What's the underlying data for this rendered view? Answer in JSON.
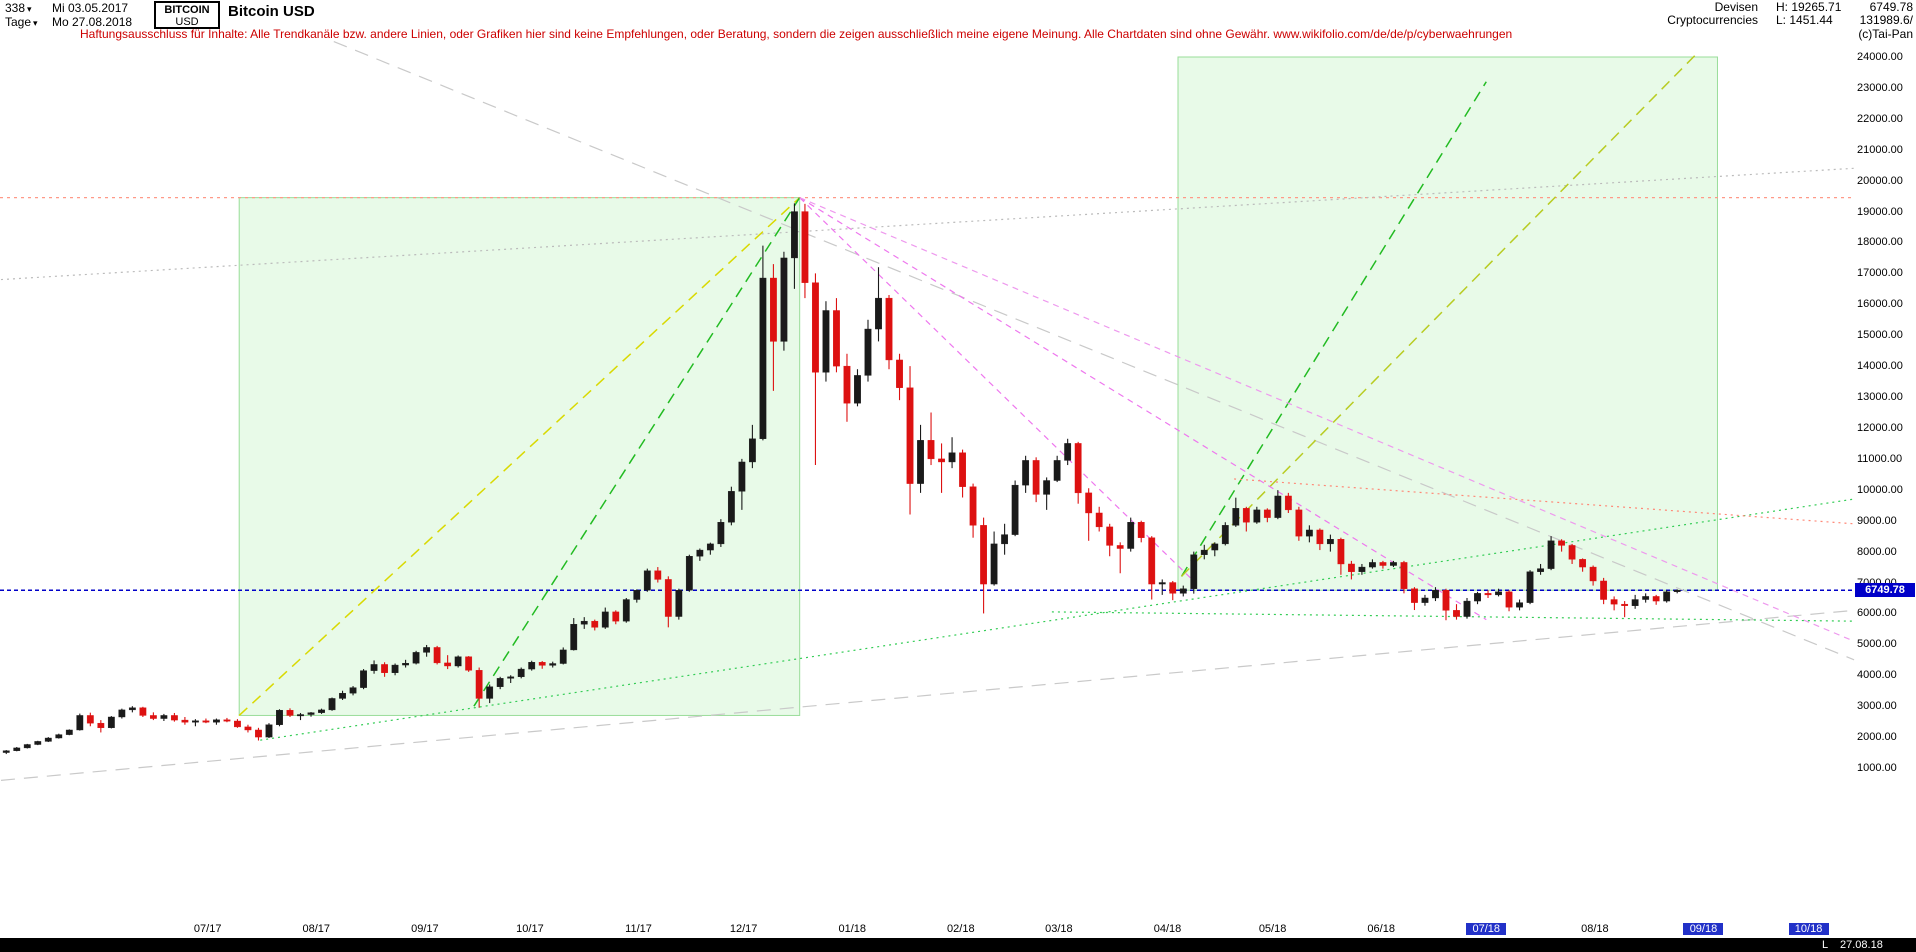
{
  "header": {
    "bars_count": "338",
    "start_date": "Mi 03.05.2017",
    "period": "Tage",
    "end_date": "Mo 27.08.2018",
    "symbol_line1": "BITCOIN",
    "symbol_line2": "USD",
    "title": "Bitcoin USD",
    "category_line1": "Devisen",
    "category_line2": "Cryptocurrencies",
    "high_label": "H: 19265.71",
    "low_label": "L: 1451.44",
    "last_price": "6749.78",
    "volume": "131989.6/",
    "copyright": "(c)Tai-Pan"
  },
  "disclaimer": "Haftungsausschluss für Inhalte: Alle Trendkanäle bzw. andere Linien, oder Grafiken hier sind keine Empfehlungen, oder Beratung, sondern die zeigen ausschließlich meine eigene Meinung. Alle Chartdaten sind ohne Gewähr.  www.wikifolio.com/de/de/p/cyberwaehrungen",
  "footer": {
    "last_label": "L",
    "last_date": "27.08.18"
  },
  "chart_data": {
    "type": "candlestick",
    "title": "Bitcoin USD",
    "xlabel": "",
    "ylabel": "",
    "x_start_date": "03.05.2017",
    "x_end_date": "27.08.2018",
    "current_price": 6749.78,
    "period_high": 19265.71,
    "period_low": 1451.44,
    "grid": false,
    "up_color": "#1a1a1a",
    "down_color": "#dd1111",
    "y_axis": {
      "min": 1000,
      "max": 24000,
      "step": 1000
    },
    "x_ticks": [
      {
        "label": "07/17",
        "day": 59,
        "hl": false
      },
      {
        "label": "08/17",
        "day": 90,
        "hl": false
      },
      {
        "label": "09/17",
        "day": 121,
        "hl": false
      },
      {
        "label": "10/17",
        "day": 151,
        "hl": false
      },
      {
        "label": "11/17",
        "day": 182,
        "hl": false
      },
      {
        "label": "12/17",
        "day": 212,
        "hl": false
      },
      {
        "label": "01/18",
        "day": 243,
        "hl": false
      },
      {
        "label": "02/18",
        "day": 274,
        "hl": false
      },
      {
        "label": "03/18",
        "day": 302,
        "hl": false
      },
      {
        "label": "04/18",
        "day": 333,
        "hl": false
      },
      {
        "label": "05/18",
        "day": 363,
        "hl": false
      },
      {
        "label": "06/18",
        "day": 394,
        "hl": false
      },
      {
        "label": "07/18",
        "day": 424,
        "hl": true
      },
      {
        "label": "08/18",
        "day": 455,
        "hl": false
      },
      {
        "label": "09/18",
        "day": 486,
        "hl": true
      },
      {
        "label": "10/18",
        "day": 516,
        "hl": true
      }
    ],
    "candles_days_per_bar": 3,
    "candles_start_day": 1.5,
    "candles": [
      [
        1500,
        1580,
        1451,
        1560
      ],
      [
        1560,
        1680,
        1540,
        1650
      ],
      [
        1650,
        1780,
        1630,
        1760
      ],
      [
        1760,
        1880,
        1740,
        1860
      ],
      [
        1860,
        2000,
        1840,
        1970
      ],
      [
        1970,
        2110,
        1950,
        2080
      ],
      [
        2080,
        2250,
        2060,
        2230
      ],
      [
        2230,
        2760,
        2210,
        2700
      ],
      [
        2700,
        2790,
        2350,
        2450
      ],
      [
        2450,
        2550,
        2150,
        2300
      ],
      [
        2300,
        2680,
        2280,
        2650
      ],
      [
        2650,
        2920,
        2600,
        2880
      ],
      [
        2880,
        3000,
        2800,
        2950
      ],
      [
        2950,
        2980,
        2650,
        2700
      ],
      [
        2700,
        2800,
        2550,
        2600
      ],
      [
        2600,
        2750,
        2520,
        2700
      ],
      [
        2700,
        2780,
        2500,
        2550
      ],
      [
        2550,
        2650,
        2400,
        2480
      ],
      [
        2480,
        2580,
        2350,
        2530
      ],
      [
        2530,
        2600,
        2450,
        2480
      ],
      [
        2480,
        2600,
        2400,
        2560
      ],
      [
        2560,
        2620,
        2480,
        2520
      ],
      [
        2520,
        2580,
        2300,
        2330
      ],
      [
        2330,
        2400,
        2150,
        2230
      ],
      [
        2230,
        2300,
        1890,
        2000
      ],
      [
        2000,
        2450,
        1970,
        2400
      ],
      [
        2400,
        2900,
        2350,
        2870
      ],
      [
        2870,
        2930,
        2650,
        2700
      ],
      [
        2700,
        2780,
        2550,
        2730
      ],
      [
        2730,
        2810,
        2660,
        2790
      ],
      [
        2790,
        2920,
        2750,
        2880
      ],
      [
        2880,
        3280,
        2850,
        3250
      ],
      [
        3250,
        3500,
        3200,
        3420
      ],
      [
        3420,
        3650,
        3350,
        3600
      ],
      [
        3600,
        4200,
        3550,
        4150
      ],
      [
        4150,
        4480,
        4050,
        4350
      ],
      [
        4350,
        4420,
        3950,
        4080
      ],
      [
        4080,
        4380,
        4000,
        4330
      ],
      [
        4330,
        4500,
        4250,
        4390
      ],
      [
        4390,
        4790,
        4350,
        4740
      ],
      [
        4740,
        4980,
        4600,
        4900
      ],
      [
        4900,
        4950,
        4350,
        4400
      ],
      [
        4400,
        4650,
        4200,
        4300
      ],
      [
        4300,
        4640,
        4250,
        4600
      ],
      [
        4600,
        4620,
        4110,
        4160
      ],
      [
        4160,
        4250,
        2950,
        3250
      ],
      [
        3250,
        3700,
        3100,
        3630
      ],
      [
        3630,
        3950,
        3550,
        3900
      ],
      [
        3900,
        4000,
        3750,
        3950
      ],
      [
        3950,
        4250,
        3900,
        4200
      ],
      [
        4200,
        4470,
        4150,
        4420
      ],
      [
        4420,
        4460,
        4210,
        4320
      ],
      [
        4320,
        4440,
        4250,
        4380
      ],
      [
        4380,
        4900,
        4350,
        4820
      ],
      [
        4820,
        5850,
        4800,
        5650
      ],
      [
        5650,
        5880,
        5500,
        5750
      ],
      [
        5750,
        5800,
        5450,
        5550
      ],
      [
        5550,
        6190,
        5500,
        6050
      ],
      [
        6050,
        6100,
        5650,
        5750
      ],
      [
        5750,
        6500,
        5700,
        6450
      ],
      [
        6450,
        6780,
        6350,
        6750
      ],
      [
        6750,
        7450,
        6700,
        7380
      ],
      [
        7380,
        7500,
        7000,
        7100
      ],
      [
        7100,
        7200,
        5550,
        5900
      ],
      [
        5900,
        6800,
        5800,
        6750
      ],
      [
        6750,
        7900,
        6700,
        7850
      ],
      [
        7850,
        8100,
        7700,
        8050
      ],
      [
        8050,
        8290,
        7900,
        8250
      ],
      [
        8250,
        9050,
        8150,
        8950
      ],
      [
        8950,
        10100,
        8850,
        9950
      ],
      [
        9950,
        11000,
        9350,
        10900
      ],
      [
        10900,
        12100,
        10700,
        11650
      ],
      [
        11650,
        17900,
        11600,
        16850
      ],
      [
        16850,
        17300,
        13200,
        14800
      ],
      [
        14800,
        17700,
        14500,
        17500
      ],
      [
        17500,
        19265,
        16500,
        19000
      ],
      [
        19000,
        19250,
        16200,
        16700
      ],
      [
        16700,
        17000,
        10800,
        13800
      ],
      [
        13800,
        16100,
        13500,
        15800
      ],
      [
        15800,
        16200,
        13800,
        14000
      ],
      [
        14000,
        14400,
        12200,
        12800
      ],
      [
        12800,
        13900,
        12700,
        13700
      ],
      [
        13700,
        15500,
        13500,
        15200
      ],
      [
        15200,
        17200,
        14800,
        16200
      ],
      [
        16200,
        16300,
        13900,
        14200
      ],
      [
        14200,
        14400,
        12900,
        13300
      ],
      [
        13300,
        14000,
        9200,
        10200
      ],
      [
        10200,
        12100,
        9900,
        11600
      ],
      [
        11600,
        12500,
        10800,
        11000
      ],
      [
        11000,
        11500,
        9900,
        10900
      ],
      [
        10900,
        11700,
        10700,
        11200
      ],
      [
        11200,
        11300,
        9750,
        10100
      ],
      [
        10100,
        10200,
        8450,
        8850
      ],
      [
        8850,
        9100,
        6000,
        6950
      ],
      [
        6950,
        8650,
        6900,
        8250
      ],
      [
        8250,
        8900,
        7900,
        8550
      ],
      [
        8550,
        10300,
        8500,
        10150
      ],
      [
        10150,
        11100,
        9900,
        10950
      ],
      [
        10950,
        11050,
        9600,
        9850
      ],
      [
        9850,
        10400,
        9350,
        10300
      ],
      [
        10300,
        11100,
        10250,
        10950
      ],
      [
        10950,
        11650,
        10800,
        11500
      ],
      [
        11500,
        11550,
        9550,
        9900
      ],
      [
        9900,
        10050,
        8350,
        9250
      ],
      [
        9250,
        9450,
        8650,
        8800
      ],
      [
        8800,
        8900,
        7850,
        8200
      ],
      [
        8200,
        8300,
        7300,
        8100
      ],
      [
        8100,
        9100,
        8000,
        8950
      ],
      [
        8950,
        9000,
        8300,
        8450
      ],
      [
        8450,
        8500,
        6450,
        6950
      ],
      [
        6950,
        7100,
        6600,
        7000
      ],
      [
        7000,
        7050,
        6430,
        6650
      ],
      [
        6650,
        6900,
        6550,
        6800
      ],
      [
        6800,
        8000,
        6640,
        7900
      ],
      [
        7900,
        8220,
        7750,
        8050
      ],
      [
        8050,
        8300,
        7850,
        8250
      ],
      [
        8250,
        8950,
        8200,
        8850
      ],
      [
        8850,
        9745,
        8800,
        9400
      ],
      [
        9400,
        9450,
        8650,
        8950
      ],
      [
        8950,
        9450,
        8900,
        9350
      ],
      [
        9350,
        9400,
        8950,
        9100
      ],
      [
        9100,
        9990,
        9050,
        9800
      ],
      [
        9800,
        9900,
        9250,
        9350
      ],
      [
        9350,
        9450,
        8350,
        8500
      ],
      [
        8500,
        8850,
        8300,
        8700
      ],
      [
        8700,
        8750,
        8050,
        8250
      ],
      [
        8250,
        8550,
        8000,
        8400
      ],
      [
        8400,
        8450,
        7250,
        7600
      ],
      [
        7600,
        7700,
        7100,
        7350
      ],
      [
        7350,
        7600,
        7250,
        7500
      ],
      [
        7500,
        7750,
        7450,
        7650
      ],
      [
        7650,
        7700,
        7450,
        7550
      ],
      [
        7550,
        7700,
        7500,
        7650
      ],
      [
        7650,
        7700,
        6650,
        6800
      ],
      [
        6800,
        6850,
        6110,
        6350
      ],
      [
        6350,
        6600,
        6250,
        6500
      ],
      [
        6500,
        6850,
        6400,
        6750
      ],
      [
        6750,
        6800,
        5780,
        6100
      ],
      [
        6100,
        6300,
        5800,
        5900
      ],
      [
        5900,
        6500,
        5830,
        6400
      ],
      [
        6400,
        6700,
        6300,
        6650
      ],
      [
        6650,
        6750,
        6500,
        6600
      ],
      [
        6600,
        6800,
        6550,
        6700
      ],
      [
        6700,
        6750,
        6070,
        6200
      ],
      [
        6200,
        6450,
        6100,
        6350
      ],
      [
        6350,
        7400,
        6300,
        7350
      ],
      [
        7350,
        7600,
        7250,
        7450
      ],
      [
        7450,
        8500,
        7400,
        8350
      ],
      [
        8350,
        8400,
        8000,
        8200
      ],
      [
        8200,
        8250,
        7600,
        7750
      ],
      [
        7750,
        7780,
        7350,
        7500
      ],
      [
        7500,
        7550,
        6900,
        7050
      ],
      [
        7050,
        7150,
        6300,
        6450
      ],
      [
        6450,
        6550,
        6100,
        6300
      ],
      [
        6300,
        6400,
        5880,
        6250
      ],
      [
        6250,
        6600,
        6150,
        6450
      ],
      [
        6450,
        6650,
        6350,
        6550
      ],
      [
        6550,
        6600,
        6280,
        6400
      ],
      [
        6400,
        6750,
        6350,
        6700
      ],
      [
        6700,
        6780,
        6650,
        6750
      ]
    ],
    "boxes": [
      {
        "d1": 68,
        "p1": 2700,
        "d2": 228,
        "p2": 19450,
        "fill": "rgba(150,230,150,0.22)",
        "stroke": "#99dd99",
        "name": "bull-run-2017-box"
      },
      {
        "d1": 336,
        "p1": 6750,
        "d2": 490,
        "p2": 24000,
        "fill": "rgba(150,230,150,0.22)",
        "stroke": "#99dd99",
        "name": "projection-2018-box"
      }
    ],
    "trend_lines": [
      {
        "d1": 95,
        "p1": 24500,
        "d2": 529,
        "p2": 4500,
        "color": "#c9c9c9",
        "dash": "14 9",
        "w": 1.2,
        "name": "gray-descending-line"
      },
      {
        "d1": 0,
        "p1": 600,
        "d2": 529,
        "p2": 6100,
        "color": "#c9c9c9",
        "dash": "14 9",
        "w": 1.2,
        "name": "gray-rising-line"
      },
      {
        "d1": 0,
        "p1": 16800,
        "d2": 529,
        "p2": 20400,
        "color": "#bbbbbb",
        "dash": "2 4",
        "w": 1.2,
        "name": "gray-dotted-line"
      },
      {
        "d1": 68,
        "p1": 2700,
        "d2": 228,
        "p2": 19450,
        "color": "#d9d900",
        "dash": "11 7",
        "w": 1.5,
        "name": "yellow-uptrend-2017"
      },
      {
        "d1": 135,
        "p1": 3000,
        "d2": 228,
        "p2": 19450,
        "color": "#22bb22",
        "dash": "11 7",
        "w": 1.5,
        "name": "green-uptrend-2017"
      },
      {
        "d1": 337,
        "p1": 7200,
        "d2": 424,
        "p2": 23200,
        "color": "#22bb22",
        "dash": "11 7",
        "w": 1.5,
        "name": "green-projection-steep"
      },
      {
        "d1": 337,
        "p1": 7200,
        "d2": 484,
        "p2": 24100,
        "color": "#b8cc22",
        "dash": "11 7",
        "w": 1.5,
        "name": "yellow-green-projection"
      },
      {
        "d1": 228,
        "p1": 19450,
        "d2": 340,
        "p2": 7100,
        "color": "#ee77ee",
        "dash": "6 5",
        "w": 1.2,
        "name": "magenta-downtrend-steep"
      },
      {
        "d1": 228,
        "p1": 19450,
        "d2": 424,
        "p2": 5800,
        "color": "#ee77ee",
        "dash": "6 5",
        "w": 1.2,
        "name": "magenta-downtrend-mid"
      },
      {
        "d1": 228,
        "p1": 19450,
        "d2": 529,
        "p2": 5100,
        "color": "#ee99ee",
        "dash": "6 5",
        "w": 1.2,
        "name": "magenta-downtrend-shallow"
      },
      {
        "d1": 74,
        "p1": 1900,
        "d2": 529,
        "p2": 9700,
        "color": "#33cc55",
        "dash": "2 4",
        "w": 1.2,
        "name": "green-dotted-support"
      },
      {
        "d1": 300,
        "p1": 6050,
        "d2": 529,
        "p2": 5750,
        "color": "#33cc55",
        "dash": "2 4",
        "w": 1.2,
        "name": "green-dotted-lows"
      },
      {
        "d1": 352,
        "p1": 10350,
        "d2": 529,
        "p2": 8900,
        "color": "#ff8877",
        "dash": "2 4",
        "w": 1.2,
        "name": "red-dotted-resistance"
      }
    ],
    "h_lines": [
      {
        "price": 19450,
        "color": "#ff9988",
        "dash": "3 4",
        "w": 1.2,
        "name": "ath-level-line"
      },
      {
        "price": 6749.78,
        "color": "#0000c8",
        "dash": "4 3",
        "w": 1.6,
        "name": "current-price-line"
      }
    ]
  }
}
